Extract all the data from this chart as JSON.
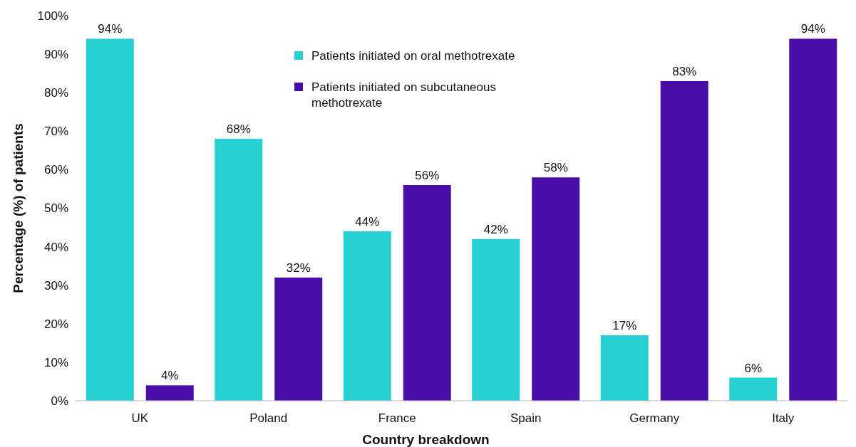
{
  "chart_data": {
    "type": "bar",
    "xlabel": "Country breakdown",
    "ylabel": "Percentage (%) of patients",
    "categories": [
      "UK",
      "Poland",
      "France",
      "Spain",
      "Germany",
      "Italy"
    ],
    "series": [
      {
        "name": "Patients initiated on oral methotrexate",
        "color": "#26d0d2",
        "values": [
          94,
          68,
          44,
          42,
          17,
          6
        ],
        "value_labels": [
          "94%",
          "68%",
          "44%",
          "42%",
          "17%",
          "6%"
        ]
      },
      {
        "name": "Patients initiated on subcutaneous methotrexate",
        "color": "#4a0ea8",
        "values": [
          4,
          32,
          56,
          58,
          83,
          94
        ],
        "value_labels": [
          "4%",
          "32%",
          "56%",
          "58%",
          "83%",
          "94%"
        ]
      }
    ],
    "ylim": [
      0,
      100
    ],
    "yticks": [
      {
        "value": 0,
        "label": "0%"
      },
      {
        "value": 10,
        "label": "10%"
      },
      {
        "value": 20,
        "label": "20%"
      },
      {
        "value": 30,
        "label": "30%"
      },
      {
        "value": 40,
        "label": "40%"
      },
      {
        "value": 50,
        "label": "50%"
      },
      {
        "value": 60,
        "label": "60%"
      },
      {
        "value": 70,
        "label": "70%"
      },
      {
        "value": 80,
        "label": "80%"
      },
      {
        "value": 90,
        "label": "90%"
      },
      {
        "value": 100,
        "label": "100%"
      }
    ],
    "grid": false,
    "legend": "top"
  }
}
